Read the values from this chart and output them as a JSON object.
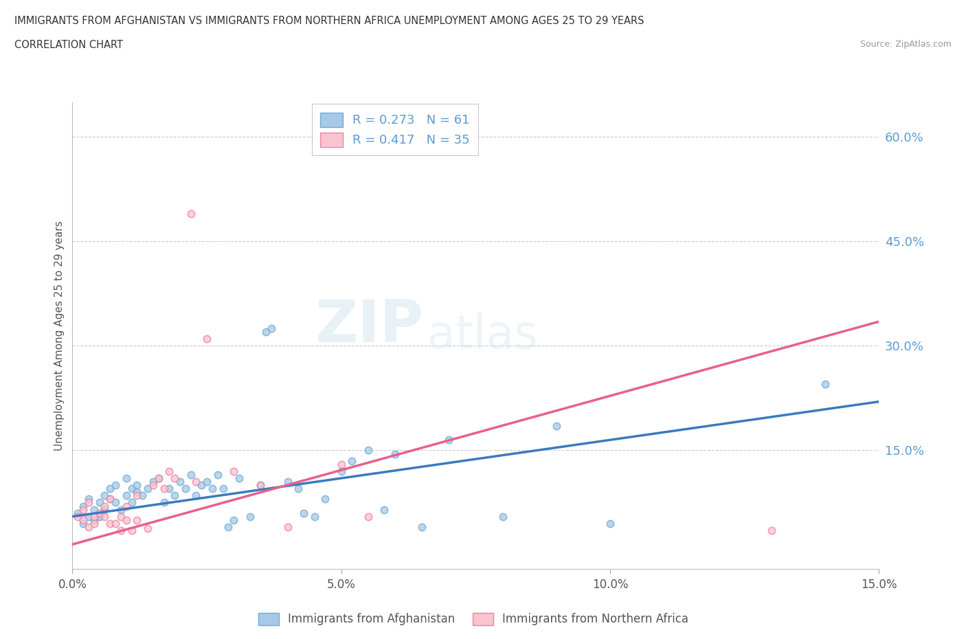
{
  "title_line1": "IMMIGRANTS FROM AFGHANISTAN VS IMMIGRANTS FROM NORTHERN AFRICA UNEMPLOYMENT AMONG AGES 25 TO 29 YEARS",
  "title_line2": "CORRELATION CHART",
  "source": "Source: ZipAtlas.com",
  "ylabel": "Unemployment Among Ages 25 to 29 years",
  "xlim": [
    0.0,
    0.15
  ],
  "ylim": [
    -0.02,
    0.65
  ],
  "xticks": [
    0.0,
    0.05,
    0.1,
    0.15
  ],
  "yticks_right": [
    0.15,
    0.3,
    0.45,
    0.6
  ],
  "ytick_labels_right": [
    "15.0%",
    "30.0%",
    "45.0%",
    "60.0%"
  ],
  "xtick_labels": [
    "0.0%",
    "5.0%",
    "10.0%",
    "15.0%"
  ],
  "afghanistan_color": "#a8c8e8",
  "afghanistan_edge": "#6aaed6",
  "northern_africa_color": "#f9c4cf",
  "northern_africa_edge": "#f080a0",
  "trend_afghanistan_color": "#3a7abf",
  "trend_northern_africa_color": "#e8608a",
  "R_afghanistan": 0.273,
  "N_afghanistan": 61,
  "R_northern_africa": 0.417,
  "N_northern_africa": 35,
  "legend_label_afghanistan": "Immigrants from Afghanistan",
  "legend_label_northern_africa": "Immigrants from Northern Africa",
  "watermark_zip": "ZIP",
  "watermark_atlas": "atlas",
  "background_color": "#ffffff",
  "grid_color": "#cccccc",
  "legend_text_color": "#5b9bd5",
  "legend_R_label_color": "#333333",
  "afghanistan_scatter": [
    [
      0.001,
      0.06
    ],
    [
      0.002,
      0.045
    ],
    [
      0.002,
      0.07
    ],
    [
      0.003,
      0.055
    ],
    [
      0.003,
      0.08
    ],
    [
      0.004,
      0.065
    ],
    [
      0.004,
      0.05
    ],
    [
      0.005,
      0.075
    ],
    [
      0.005,
      0.055
    ],
    [
      0.006,
      0.065
    ],
    [
      0.006,
      0.085
    ],
    [
      0.007,
      0.095
    ],
    [
      0.007,
      0.08
    ],
    [
      0.008,
      0.1
    ],
    [
      0.008,
      0.075
    ],
    [
      0.009,
      0.065
    ],
    [
      0.01,
      0.085
    ],
    [
      0.01,
      0.11
    ],
    [
      0.011,
      0.095
    ],
    [
      0.011,
      0.075
    ],
    [
      0.012,
      0.1
    ],
    [
      0.012,
      0.09
    ],
    [
      0.013,
      0.085
    ],
    [
      0.014,
      0.095
    ],
    [
      0.015,
      0.105
    ],
    [
      0.016,
      0.11
    ],
    [
      0.017,
      0.075
    ],
    [
      0.018,
      0.095
    ],
    [
      0.019,
      0.085
    ],
    [
      0.02,
      0.105
    ],
    [
      0.021,
      0.095
    ],
    [
      0.022,
      0.115
    ],
    [
      0.023,
      0.085
    ],
    [
      0.024,
      0.1
    ],
    [
      0.025,
      0.105
    ],
    [
      0.026,
      0.095
    ],
    [
      0.027,
      0.115
    ],
    [
      0.028,
      0.095
    ],
    [
      0.029,
      0.04
    ],
    [
      0.03,
      0.05
    ],
    [
      0.031,
      0.11
    ],
    [
      0.033,
      0.055
    ],
    [
      0.035,
      0.1
    ],
    [
      0.036,
      0.32
    ],
    [
      0.037,
      0.325
    ],
    [
      0.04,
      0.105
    ],
    [
      0.042,
      0.095
    ],
    [
      0.043,
      0.06
    ],
    [
      0.045,
      0.055
    ],
    [
      0.047,
      0.08
    ],
    [
      0.05,
      0.12
    ],
    [
      0.052,
      0.135
    ],
    [
      0.055,
      0.15
    ],
    [
      0.058,
      0.065
    ],
    [
      0.06,
      0.145
    ],
    [
      0.065,
      0.04
    ],
    [
      0.07,
      0.165
    ],
    [
      0.08,
      0.055
    ],
    [
      0.09,
      0.185
    ],
    [
      0.1,
      0.045
    ],
    [
      0.14,
      0.245
    ]
  ],
  "northern_africa_scatter": [
    [
      0.001,
      0.055
    ],
    [
      0.002,
      0.05
    ],
    [
      0.002,
      0.065
    ],
    [
      0.003,
      0.04
    ],
    [
      0.003,
      0.075
    ],
    [
      0.004,
      0.055
    ],
    [
      0.004,
      0.045
    ],
    [
      0.005,
      0.06
    ],
    [
      0.006,
      0.07
    ],
    [
      0.006,
      0.055
    ],
    [
      0.007,
      0.08
    ],
    [
      0.007,
      0.045
    ],
    [
      0.008,
      0.045
    ],
    [
      0.009,
      0.035
    ],
    [
      0.009,
      0.055
    ],
    [
      0.01,
      0.07
    ],
    [
      0.01,
      0.05
    ],
    [
      0.011,
      0.035
    ],
    [
      0.012,
      0.05
    ],
    [
      0.012,
      0.085
    ],
    [
      0.014,
      0.038
    ],
    [
      0.015,
      0.1
    ],
    [
      0.016,
      0.11
    ],
    [
      0.017,
      0.095
    ],
    [
      0.018,
      0.12
    ],
    [
      0.019,
      0.11
    ],
    [
      0.022,
      0.49
    ],
    [
      0.023,
      0.105
    ],
    [
      0.025,
      0.31
    ],
    [
      0.03,
      0.12
    ],
    [
      0.035,
      0.1
    ],
    [
      0.04,
      0.04
    ],
    [
      0.05,
      0.13
    ],
    [
      0.055,
      0.055
    ],
    [
      0.13,
      0.035
    ]
  ],
  "trend_afg_x0": 0.0,
  "trend_afg_y0": 0.055,
  "trend_afg_x1": 0.15,
  "trend_afg_y1": 0.22,
  "trend_na_x0": 0.0,
  "trend_na_y0": 0.015,
  "trend_na_x1": 0.15,
  "trend_na_y1": 0.335
}
